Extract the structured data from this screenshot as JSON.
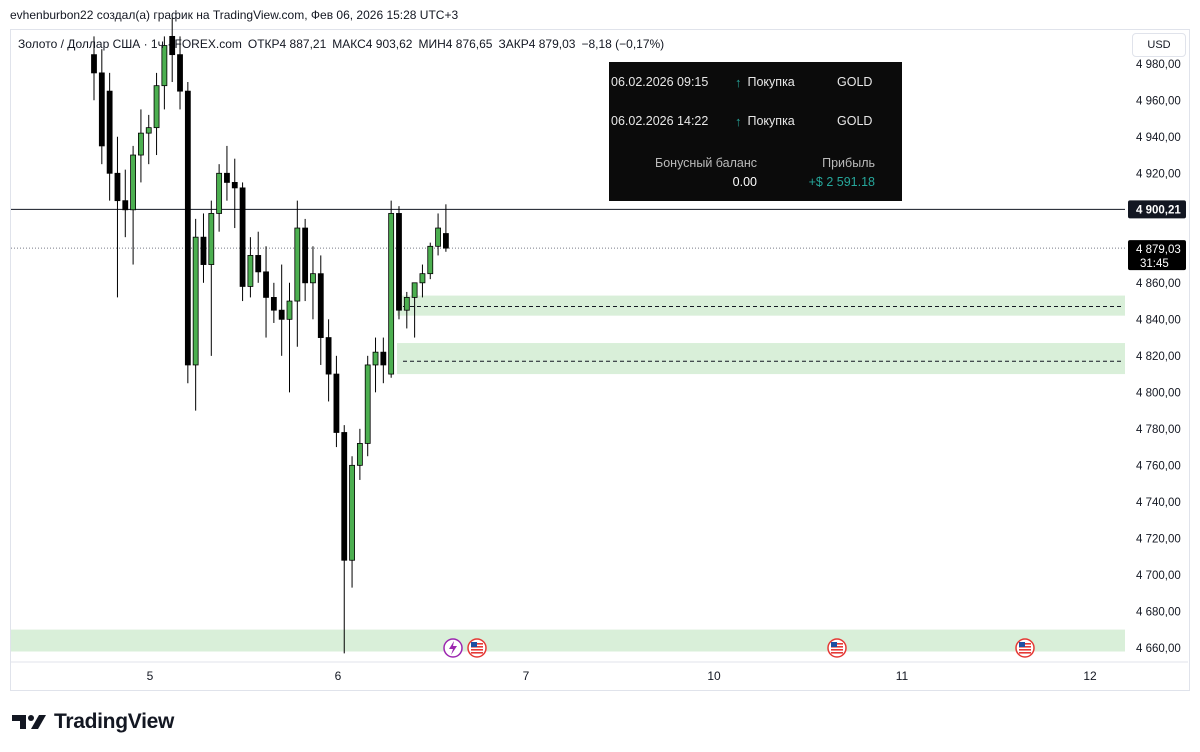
{
  "header": {
    "attribution": "evhenburbon22 создал(а) график на TradingView.com, Фев 06, 2026 15:28 UTC+3"
  },
  "legend": {
    "symbol": "Золото / Доллар США · 1ч · FOREX.com",
    "open": "ОТКР4 887,21",
    "high": "МАКС4 903,62",
    "low": "МИН4 876,65",
    "close": "ЗАКР4 879,03",
    "change": "−8,18 (−0,17%)"
  },
  "currency_button": "USD",
  "trade_panel": {
    "trades": [
      {
        "time": "06.02.2026 09:15",
        "direction": "Покупка",
        "symbol": "GOLD"
      },
      {
        "time": "06.02.2026 14:22",
        "direction": "Покупка",
        "symbol": "GOLD"
      }
    ],
    "bonus_label": "Бонусный баланс",
    "bonus_value": "0.00",
    "profit_label": "Прибыль",
    "profit_value": "+$ 2 591.18"
  },
  "price_labels": {
    "crosshair_line": "4 900,21",
    "last_price": "4 879,03",
    "countdown": "31:45"
  },
  "colors": {
    "bull": "#4caf50",
    "bear": "#000000",
    "zone_fill": "#d9efd9",
    "panel_bg": "#0b0b0b",
    "profit": "#26a69a"
  },
  "icons": [
    "lightning-event-icon",
    "us-flag-event-icon",
    "us-flag-event-icon",
    "us-flag-event-icon"
  ],
  "branding": "TradingView",
  "chart_data": {
    "type": "candlestick",
    "y_axis_ticks": [
      4980,
      4960,
      4940,
      4920,
      4860,
      4840,
      4820,
      4800,
      4780,
      4760,
      4740,
      4720,
      4700,
      4680,
      4660
    ],
    "y_axis_labels": [
      "4 980,00",
      "4 960,00",
      "4 940,00",
      "4 920,00",
      "4 860,00",
      "4 840,00",
      "4 820,00",
      "4 800,00",
      "4 780,00",
      "4 760,00",
      "4 740,00",
      "4 720,00",
      "4 700,00",
      "4 680,00",
      "4 660,00"
    ],
    "x_axis_labels": [
      {
        "label": "5",
        "day": 5
      },
      {
        "label": "6",
        "day": 6
      },
      {
        "label": "7",
        "day": 7
      },
      {
        "label": "10",
        "day": 10
      },
      {
        "label": "11",
        "day": 11
      },
      {
        "label": "12",
        "day": 12
      }
    ],
    "horizontal_line": 4900.21,
    "last_price": 4879.03,
    "zones": [
      {
        "from": 4842,
        "to": 4853
      },
      {
        "from": 4810,
        "to": 4827
      },
      {
        "from": 4658,
        "to": 4670
      }
    ],
    "dashed_levels": [
      4847,
      4817
    ],
    "candles": [
      {
        "o": 4985,
        "h": 4995,
        "l": 4960,
        "c": 4975
      },
      {
        "o": 4975,
        "h": 4988,
        "l": 4925,
        "c": 4935
      },
      {
        "o": 4965,
        "h": 4975,
        "l": 4905,
        "c": 4920
      },
      {
        "o": 4920,
        "h": 4940,
        "l": 4852,
        "c": 4905
      },
      {
        "o": 4905,
        "h": 4922,
        "l": 4885,
        "c": 4900
      },
      {
        "o": 4900,
        "h": 4935,
        "l": 4870,
        "c": 4930
      },
      {
        "o": 4930,
        "h": 4955,
        "l": 4915,
        "c": 4942
      },
      {
        "o": 4942,
        "h": 4952,
        "l": 4925,
        "c": 4945
      },
      {
        "o": 4945,
        "h": 4975,
        "l": 4930,
        "c": 4968
      },
      {
        "o": 4968,
        "h": 4995,
        "l": 4955,
        "c": 4990
      },
      {
        "o": 4995,
        "h": 5005,
        "l": 4970,
        "c": 4985
      },
      {
        "o": 4985,
        "h": 4995,
        "l": 4955,
        "c": 4965
      },
      {
        "o": 4965,
        "h": 4970,
        "l": 4805,
        "c": 4815
      },
      {
        "o": 4815,
        "h": 4895,
        "l": 4790,
        "c": 4885
      },
      {
        "o": 4885,
        "h": 4898,
        "l": 4860,
        "c": 4870
      },
      {
        "o": 4870,
        "h": 4905,
        "l": 4820,
        "c": 4898
      },
      {
        "o": 4898,
        "h": 4925,
        "l": 4888,
        "c": 4920
      },
      {
        "o": 4920,
        "h": 4935,
        "l": 4905,
        "c": 4915
      },
      {
        "o": 4915,
        "h": 4928,
        "l": 4890,
        "c": 4912
      },
      {
        "o": 4912,
        "h": 4915,
        "l": 4850,
        "c": 4858
      },
      {
        "o": 4858,
        "h": 4885,
        "l": 4852,
        "c": 4875
      },
      {
        "o": 4875,
        "h": 4888,
        "l": 4860,
        "c": 4866
      },
      {
        "o": 4866,
        "h": 4880,
        "l": 4830,
        "c": 4852
      },
      {
        "o": 4852,
        "h": 4860,
        "l": 4838,
        "c": 4845
      },
      {
        "o": 4845,
        "h": 4870,
        "l": 4820,
        "c": 4840
      },
      {
        "o": 4840,
        "h": 4860,
        "l": 4800,
        "c": 4850
      },
      {
        "o": 4850,
        "h": 4905,
        "l": 4825,
        "c": 4890
      },
      {
        "o": 4890,
        "h": 4895,
        "l": 4850,
        "c": 4860
      },
      {
        "o": 4860,
        "h": 4880,
        "l": 4840,
        "c": 4865
      },
      {
        "o": 4865,
        "h": 4875,
        "l": 4815,
        "c": 4830
      },
      {
        "o": 4830,
        "h": 4840,
        "l": 4795,
        "c": 4810
      },
      {
        "o": 4810,
        "h": 4820,
        "l": 4770,
        "c": 4778
      },
      {
        "o": 4778,
        "h": 4782,
        "l": 4657,
        "c": 4708
      },
      {
        "o": 4708,
        "h": 4765,
        "l": 4693,
        "c": 4760
      },
      {
        "o": 4760,
        "h": 4780,
        "l": 4752,
        "c": 4772
      },
      {
        "o": 4772,
        "h": 4820,
        "l": 4765,
        "c": 4815
      },
      {
        "o": 4815,
        "h": 4830,
        "l": 4800,
        "c": 4822
      },
      {
        "o": 4822,
        "h": 4830,
        "l": 4805,
        "c": 4815
      },
      {
        "o": 4810,
        "h": 4905,
        "l": 4808,
        "c": 4898
      },
      {
        "o": 4898,
        "h": 4902,
        "l": 4840,
        "c": 4845
      },
      {
        "o": 4845,
        "h": 4855,
        "l": 4835,
        "c": 4852
      },
      {
        "o": 4852,
        "h": 4860,
        "l": 4830,
        "c": 4860
      },
      {
        "o": 4860,
        "h": 4870,
        "l": 4852,
        "c": 4865
      },
      {
        "o": 4865,
        "h": 4882,
        "l": 4862,
        "c": 4880
      },
      {
        "o": 4880,
        "h": 4898,
        "l": 4875,
        "c": 4890
      },
      {
        "o": 4887,
        "h": 4903,
        "l": 4877,
        "c": 4879
      }
    ]
  }
}
